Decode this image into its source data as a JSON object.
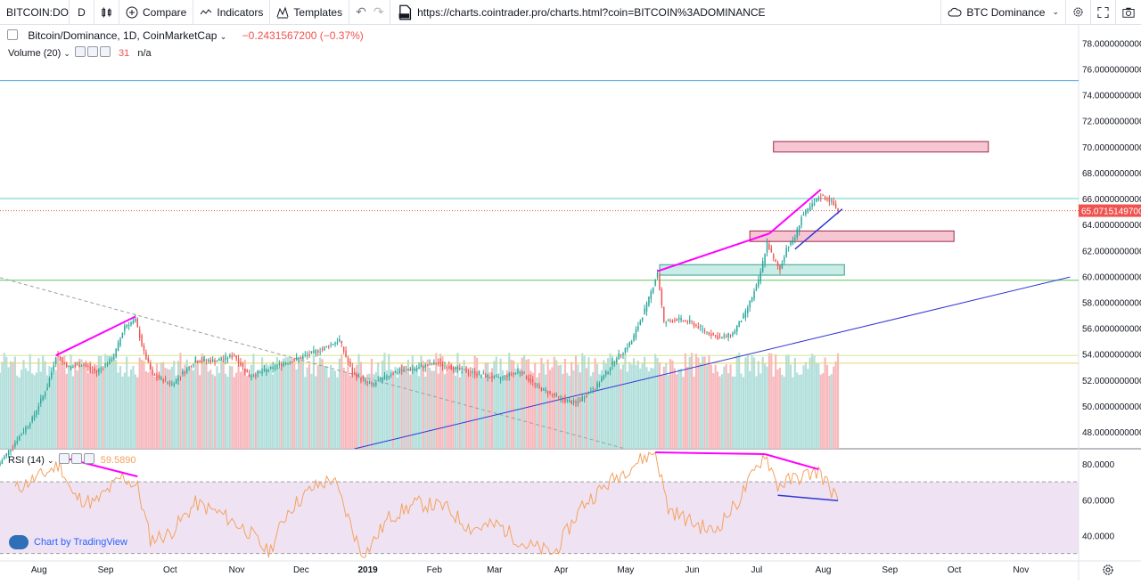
{
  "toolbar": {
    "symbol": "BITCOIN:DO",
    "interval": "D",
    "compare_label": "Compare",
    "indicators_label": "Indicators",
    "templates_label": "Templates",
    "url": "https://charts.cointrader.pro/charts.html?coin=BITCOIN%3ADOMINANCE",
    "layout_label": "BTC Dominance"
  },
  "legend": {
    "title": "Bitcoin/Dominance, 1D, CoinMarketCap",
    "change": "−0.2431567200 (−0.37%)",
    "volume_label": "Volume (20)",
    "volume_value": "31",
    "volume_extra": "n/a",
    "rsi_label": "RSI (14)",
    "rsi_value": "59.5890"
  },
  "branding": "Chart by TradingView",
  "colors": {
    "up": "#26a69a",
    "down": "#ef5350",
    "vol_up": "#b2dfdb",
    "vol_down": "#f7b9bd",
    "rsi_line": "#f4a261",
    "rsi_band": "#ead9ef",
    "magenta": "#ff00ff",
    "trend_blue": "#2f36d6"
  },
  "chart_data": {
    "type": "candlestick",
    "title": "Bitcoin/Dominance, 1D, CoinMarketCap",
    "last_value": "65.0715149700",
    "y_ticks": [
      "78.0000000000",
      "76.0000000000",
      "74.0000000000",
      "72.0000000000",
      "70.0000000000",
      "68.0000000000",
      "66.0000000000",
      "64.0000000000",
      "62.0000000000",
      "60.0000000000",
      "58.0000000000",
      "56.0000000000",
      "54.0000000000",
      "52.0000000000",
      "50.0000000000",
      "48.0000000000"
    ],
    "y_range": [
      46.7,
      79.4
    ],
    "x_ticks": [
      "Aug",
      "Sep",
      "Oct",
      "Nov",
      "Dec",
      "2019",
      "Feb",
      "Mar",
      "Apr",
      "May",
      "Jun",
      "Jul",
      "Aug",
      "Sep",
      "Oct",
      "Nov"
    ],
    "x_range": [
      "2018-07-13",
      "2019-11-27"
    ],
    "price_series": [
      {
        "date": "2018-07-13",
        "value": 45.6
      },
      {
        "date": "2018-07-20",
        "value": 47.2
      },
      {
        "date": "2018-07-28",
        "value": 49.0
      },
      {
        "date": "2018-08-04",
        "value": 51.5
      },
      {
        "date": "2018-08-08",
        "value": 53.9
      },
      {
        "date": "2018-08-14",
        "value": 53.0
      },
      {
        "date": "2018-08-20",
        "value": 53.2
      },
      {
        "date": "2018-08-27",
        "value": 52.6
      },
      {
        "date": "2018-09-04",
        "value": 53.8
      },
      {
        "date": "2018-09-09",
        "value": 56.2
      },
      {
        "date": "2018-09-14",
        "value": 56.6
      },
      {
        "date": "2018-09-18",
        "value": 54.1
      },
      {
        "date": "2018-09-22",
        "value": 52.4
      },
      {
        "date": "2018-10-01",
        "value": 51.7
      },
      {
        "date": "2018-10-12",
        "value": 53.5
      },
      {
        "date": "2018-10-22",
        "value": 53.5
      },
      {
        "date": "2018-10-30",
        "value": 53.9
      },
      {
        "date": "2018-11-06",
        "value": 52.3
      },
      {
        "date": "2018-11-15",
        "value": 52.8
      },
      {
        "date": "2018-11-22",
        "value": 53.3
      },
      {
        "date": "2018-12-01",
        "value": 53.8
      },
      {
        "date": "2018-12-10",
        "value": 54.4
      },
      {
        "date": "2018-12-18",
        "value": 55.1
      },
      {
        "date": "2018-12-24",
        "value": 52.5
      },
      {
        "date": "2019-01-02",
        "value": 51.6
      },
      {
        "date": "2019-01-12",
        "value": 52.6
      },
      {
        "date": "2019-01-22",
        "value": 52.9
      },
      {
        "date": "2019-02-01",
        "value": 53.3
      },
      {
        "date": "2019-02-12",
        "value": 52.8
      },
      {
        "date": "2019-02-22",
        "value": 52.4
      },
      {
        "date": "2019-03-02",
        "value": 52.1
      },
      {
        "date": "2019-03-12",
        "value": 52.7
      },
      {
        "date": "2019-03-20",
        "value": 51.5
      },
      {
        "date": "2019-03-30",
        "value": 50.6
      },
      {
        "date": "2019-04-07",
        "value": 50.2
      },
      {
        "date": "2019-04-17",
        "value": 51.6
      },
      {
        "date": "2019-04-25",
        "value": 53.5
      },
      {
        "date": "2019-05-03",
        "value": 55.0
      },
      {
        "date": "2019-05-10",
        "value": 57.8
      },
      {
        "date": "2019-05-15",
        "value": 60.3
      },
      {
        "date": "2019-05-18",
        "value": 56.4
      },
      {
        "date": "2019-05-24",
        "value": 56.7
      },
      {
        "date": "2019-05-30",
        "value": 56.5
      },
      {
        "date": "2019-06-06",
        "value": 55.8
      },
      {
        "date": "2019-06-13",
        "value": 55.2
      },
      {
        "date": "2019-06-19",
        "value": 55.6
      },
      {
        "date": "2019-06-25",
        "value": 57.2
      },
      {
        "date": "2019-07-01",
        "value": 59.6
      },
      {
        "date": "2019-07-05",
        "value": 62.6
      },
      {
        "date": "2019-07-08",
        "value": 61.3
      },
      {
        "date": "2019-07-11",
        "value": 60.5
      },
      {
        "date": "2019-07-14",
        "value": 62.2
      },
      {
        "date": "2019-07-18",
        "value": 63.0
      },
      {
        "date": "2019-07-21",
        "value": 64.6
      },
      {
        "date": "2019-07-25",
        "value": 65.3
      },
      {
        "date": "2019-07-30",
        "value": 66.2
      },
      {
        "date": "2019-08-03",
        "value": 65.9
      },
      {
        "date": "2019-08-07",
        "value": 65.1
      }
    ],
    "rsi": {
      "label": "RSI (14)",
      "ticks": [
        "80.0000",
        "60.0000",
        "40.0000"
      ],
      "range": [
        26.8,
        87.0
      ],
      "band": [
        30,
        70
      ],
      "series": [
        {
          "date": "2018-07-20",
          "value": 66
        },
        {
          "date": "2018-08-02",
          "value": 74
        },
        {
          "date": "2018-08-10",
          "value": 80
        },
        {
          "date": "2018-08-16",
          "value": 62
        },
        {
          "date": "2018-08-26",
          "value": 58
        },
        {
          "date": "2018-09-08",
          "value": 73
        },
        {
          "date": "2018-09-15",
          "value": 67
        },
        {
          "date": "2018-09-21",
          "value": 38
        },
        {
          "date": "2018-09-30",
          "value": 41
        },
        {
          "date": "2018-10-12",
          "value": 58
        },
        {
          "date": "2018-10-24",
          "value": 52
        },
        {
          "date": "2018-11-06",
          "value": 42
        },
        {
          "date": "2018-11-15",
          "value": 30
        },
        {
          "date": "2018-11-24",
          "value": 54
        },
        {
          "date": "2018-12-05",
          "value": 66
        },
        {
          "date": "2018-12-15",
          "value": 72
        },
        {
          "date": "2018-12-22",
          "value": 50
        },
        {
          "date": "2018-12-29",
          "value": 28
        },
        {
          "date": "2019-01-10",
          "value": 50
        },
        {
          "date": "2019-01-23",
          "value": 58
        },
        {
          "date": "2019-02-05",
          "value": 56
        },
        {
          "date": "2019-02-17",
          "value": 44
        },
        {
          "date": "2019-03-02",
          "value": 46
        },
        {
          "date": "2019-03-14",
          "value": 35
        },
        {
          "date": "2019-03-28",
          "value": 30
        },
        {
          "date": "2019-04-10",
          "value": 57
        },
        {
          "date": "2019-04-24",
          "value": 71
        },
        {
          "date": "2019-05-04",
          "value": 80
        },
        {
          "date": "2019-05-14",
          "value": 87
        },
        {
          "date": "2019-05-20",
          "value": 55
        },
        {
          "date": "2019-05-30",
          "value": 48
        },
        {
          "date": "2019-06-10",
          "value": 42
        },
        {
          "date": "2019-06-21",
          "value": 58
        },
        {
          "date": "2019-07-04",
          "value": 86
        },
        {
          "date": "2019-07-10",
          "value": 68
        },
        {
          "date": "2019-07-18",
          "value": 72
        },
        {
          "date": "2019-07-29",
          "value": 76
        },
        {
          "date": "2019-08-07",
          "value": 60
        }
      ]
    },
    "horizontal_lines": [
      {
        "value": 75.1,
        "color": "#4aa3df"
      },
      {
        "value": 66.0,
        "color": "#5ed1c5"
      },
      {
        "value": 65.07,
        "color": "#ef5350",
        "style": "dotted"
      },
      {
        "value": 59.7,
        "color": "#5bc85b"
      },
      {
        "value": 53.9,
        "color": "#d6e59a"
      },
      {
        "value": 53.3,
        "color": "#e6d36b"
      }
    ],
    "zones": [
      {
        "from": "2019-07-08",
        "to": "2019-10-16",
        "low": 69.8,
        "high": 70.2,
        "kind": "resistance"
      },
      {
        "from": "2019-06-27",
        "to": "2019-09-30",
        "low": 62.9,
        "high": 63.3,
        "kind": "resistance"
      },
      {
        "from": "2019-05-16",
        "to": "2019-08-10",
        "low": 60.3,
        "high": 60.7,
        "kind": "support"
      }
    ]
  }
}
